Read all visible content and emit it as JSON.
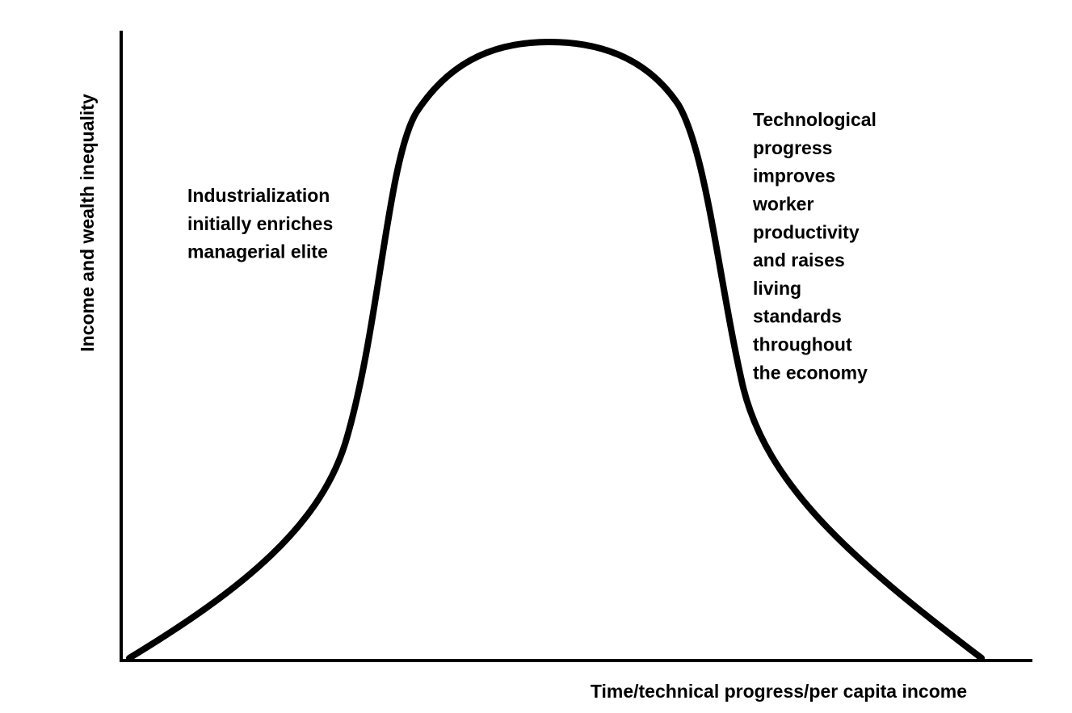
{
  "axes": {
    "y_label": "Income and wealth inequality",
    "x_label": "Time/technical progress/per capita income"
  },
  "annotations": [
    {
      "lines": [
        "Industrialization",
        "initially enriches",
        "managerial elite"
      ]
    },
    {
      "lines": [
        "Technological",
        "progress",
        "improves",
        "worker",
        "productivity",
        "and raises",
        "living",
        "standards",
        "throughout",
        "the economy"
      ]
    }
  ]
}
